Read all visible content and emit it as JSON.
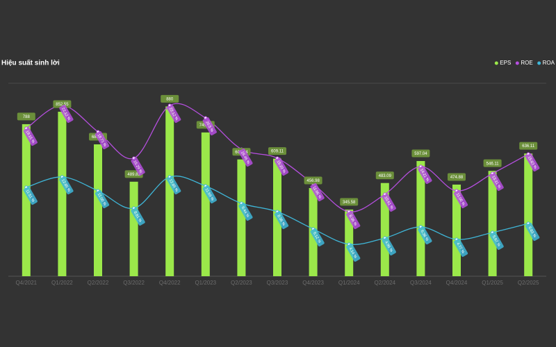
{
  "chart_data": {
    "type": "bar-line",
    "title": "Hiệu suất sinh lời",
    "categories": [
      "Q4/2021",
      "Q1/2022",
      "Q2/2022",
      "Q3/2022",
      "Q4/2022",
      "Q1/2023",
      "Q2/2023",
      "Q3/2023",
      "Q4/2023",
      "Q1/2024",
      "Q2/2024",
      "Q3/2024",
      "Q4/2024",
      "Q1/2025",
      "Q2/2025"
    ],
    "ylim": [
      0,
      1000
    ],
    "y2lim": [
      0,
      25
    ],
    "legend": "top-right",
    "series": [
      {
        "name": "EPS",
        "type": "bar",
        "color": "#9be84a",
        "values": [
          788,
          852.55,
          683.41,
          489.83,
          880,
          745.16,
          605.44,
          609.11,
          456.98,
          345.58,
          483.09,
          597.04,
          474.88,
          546.11,
          636.11
        ]
      },
      {
        "name": "ROE",
        "type": "line",
        "axis": "y2",
        "color": "#b64fe0",
        "values": [
          19.15,
          22.12,
          18.71,
          15.29,
          22.12,
          20.5,
          16.46,
          15.29,
          11.96,
          8.36,
          10.61,
          14.21,
          11.06,
          13.31,
          15.83
        ],
        "value_labels": [
          "19.15 %",
          "22.12 %",
          "18.71 %",
          "15.29 %",
          "22.12 %",
          "20.5 %",
          "16.46 %",
          "15.29 %",
          "11.96 %",
          "8.36 %",
          "10.61 %",
          "14.21 %",
          "11.06 %",
          "13.31 %",
          "15.83 %"
        ]
      },
      {
        "name": "ROA",
        "type": "line",
        "axis": "y2",
        "color": "#3fb7d9",
        "values": [
          11.51,
          12.86,
          11.06,
          8.81,
          12.86,
          11.69,
          9.44,
          8.36,
          6.12,
          4.14,
          4.95,
          6.38,
          4.77,
          5.67,
          6.83
        ],
        "value_labels": [
          "11.51 %",
          "12.86 %",
          "11.06 %",
          "8.81 %",
          "12.86 %",
          "11.69 %",
          "9.44 %",
          "8.36 %",
          "6.12 %",
          "4.14 %",
          "4.95 %",
          "6.38 %",
          "4.77 %",
          "5.67 %",
          "6.83 %"
        ]
      }
    ]
  }
}
